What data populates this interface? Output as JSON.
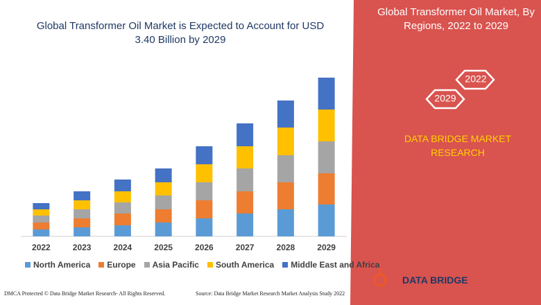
{
  "chart_data": {
    "type": "stacked-bar",
    "title": "Global Transformer Oil Market is Expected to Account for USD 3.40 Billion by 2029",
    "categories": [
      "2022",
      "2023",
      "2024",
      "2025",
      "2026",
      "2027",
      "2028",
      "2029"
    ],
    "series": [
      {
        "name": "North America",
        "color": "#5b9bd5",
        "values": [
          10,
          13,
          16,
          20,
          26,
          33,
          39,
          46
        ]
      },
      {
        "name": "Europe",
        "color": "#ed7d31",
        "values": [
          10,
          13,
          17,
          19,
          26,
          32,
          39,
          45
        ]
      },
      {
        "name": "Asia Pacific",
        "color": "#a5a5a5",
        "values": [
          10,
          13,
          16,
          20,
          26,
          33,
          39,
          46
        ]
      },
      {
        "name": "South America",
        "color": "#ffc000",
        "values": [
          9,
          13,
          16,
          19,
          26,
          32,
          40,
          46
        ]
      },
      {
        "name": "Middle East and Africa",
        "color": "#4472c4",
        "values": [
          9,
          13,
          17,
          20,
          26,
          33,
          39,
          46
        ]
      }
    ]
  },
  "panel": {
    "title": "Global Transformer Oil Market, By Regions, 2022 to 2029",
    "hex_labels": [
      "2022",
      "2029"
    ],
    "brand": "DATA BRIDGE MARKET RESEARCH"
  },
  "footer": {
    "left": "DMCA Protected © Data Bridge Market Research- All Rights Reserved.",
    "right": "Source: Data Bridge Market Research Market Analysis Study 2022",
    "logo": "DATA BRIDGE"
  }
}
